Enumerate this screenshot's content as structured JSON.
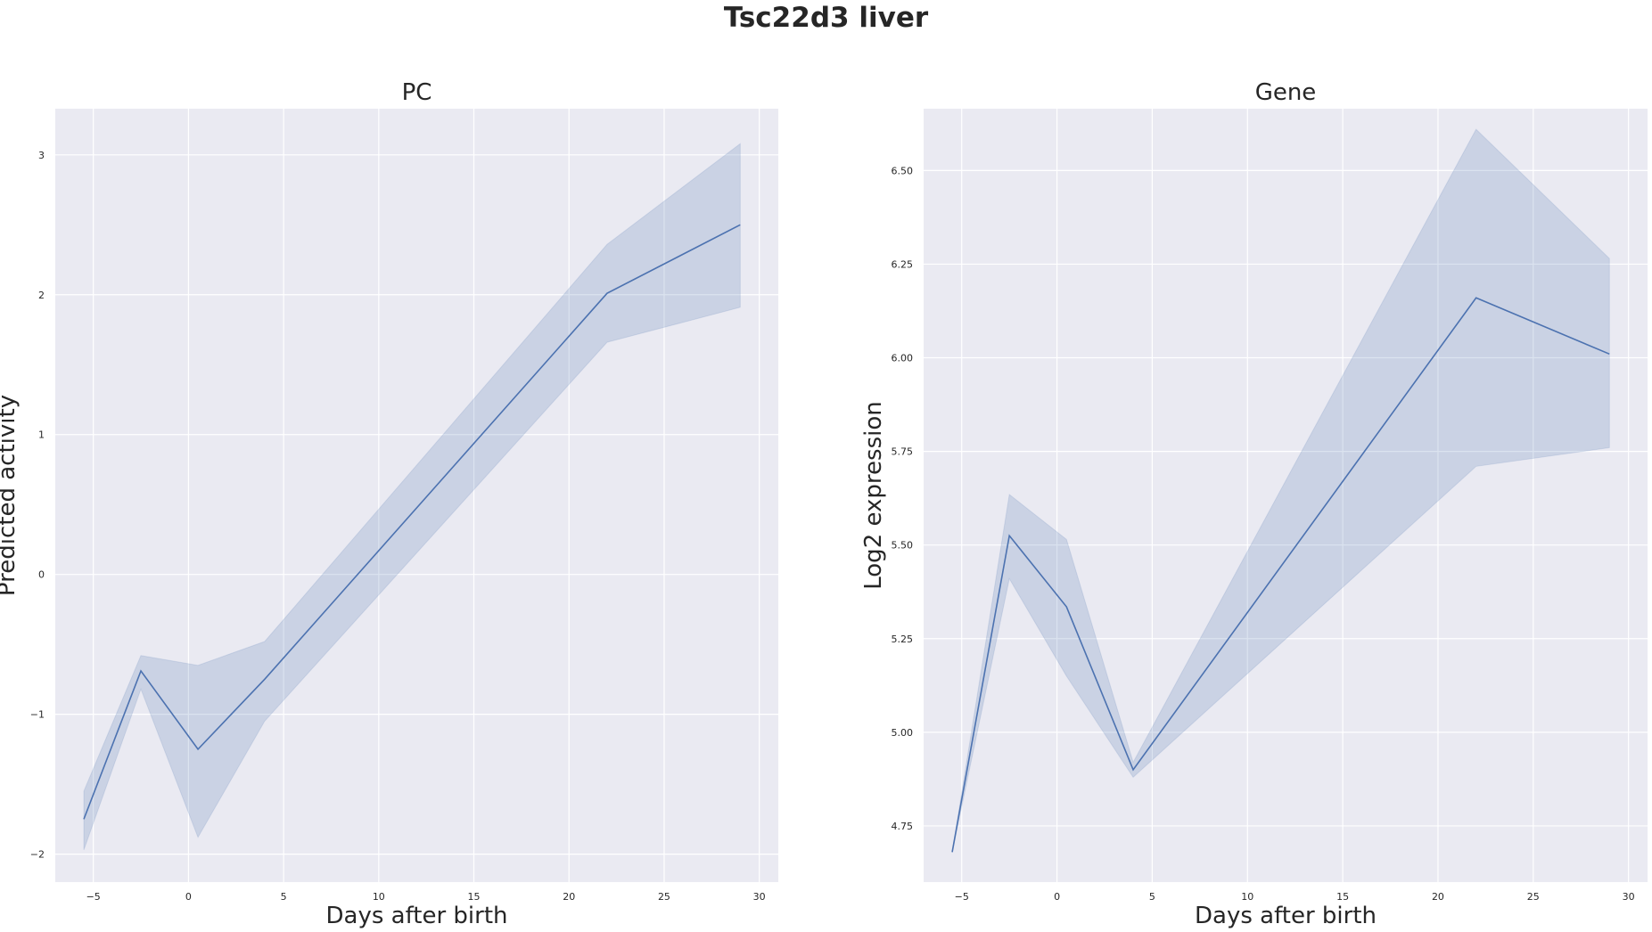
{
  "title": "Tsc22d3 liver",
  "chart_data": [
    {
      "type": "line",
      "title": "PC",
      "xlabel": "Days after birth",
      "ylabel": "Predicted activity",
      "xlim": [
        -7,
        31
      ],
      "ylim": [
        -2.2,
        3.33
      ],
      "xticks": [
        -5,
        0,
        5,
        10,
        15,
        20,
        25,
        30
      ],
      "xtick_labels": [
        "−5",
        "0",
        "5",
        "10",
        "15",
        "20",
        "25",
        "30"
      ],
      "yticks": [
        -2,
        -1,
        0,
        1,
        2,
        3
      ],
      "ytick_labels": [
        "−2",
        "−1",
        "0",
        "1",
        "2",
        "3"
      ],
      "grid": true,
      "color": "#4c72b0",
      "x": [
        -5.5,
        -2.5,
        0.5,
        4,
        22,
        29
      ],
      "y": [
        -1.75,
        -0.69,
        -1.25,
        -0.75,
        2.01,
        2.5
      ],
      "ci_low": [
        -1.97,
        -0.82,
        -1.88,
        -1.05,
        1.66,
        1.91
      ],
      "ci_high": [
        -1.55,
        -0.58,
        -0.65,
        -0.48,
        2.36,
        3.08
      ]
    },
    {
      "type": "line",
      "title": "Gene",
      "xlabel": "Days after birth",
      "ylabel": "Log2 expression",
      "xlim": [
        -7,
        31
      ],
      "ylim": [
        4.6,
        6.665
      ],
      "xticks": [
        -5,
        0,
        5,
        10,
        15,
        20,
        25,
        30
      ],
      "xtick_labels": [
        "−5",
        "0",
        "5",
        "10",
        "15",
        "20",
        "25",
        "30"
      ],
      "yticks": [
        4.75,
        5.0,
        5.25,
        5.5,
        5.75,
        6.0,
        6.25,
        6.5
      ],
      "ytick_labels": [
        "4.75",
        "5.00",
        "5.25",
        "5.50",
        "5.75",
        "6.00",
        "6.25",
        "6.50"
      ],
      "grid": true,
      "color": "#4c72b0",
      "x": [
        -5.5,
        -2.5,
        0.5,
        4,
        22,
        29
      ],
      "y": [
        4.68,
        5.525,
        5.335,
        4.9,
        6.16,
        6.01
      ],
      "ci_low": [
        4.68,
        5.41,
        5.15,
        4.88,
        5.71,
        5.76
      ],
      "ci_high": [
        4.68,
        5.635,
        5.515,
        4.92,
        6.61,
        6.265
      ]
    }
  ]
}
